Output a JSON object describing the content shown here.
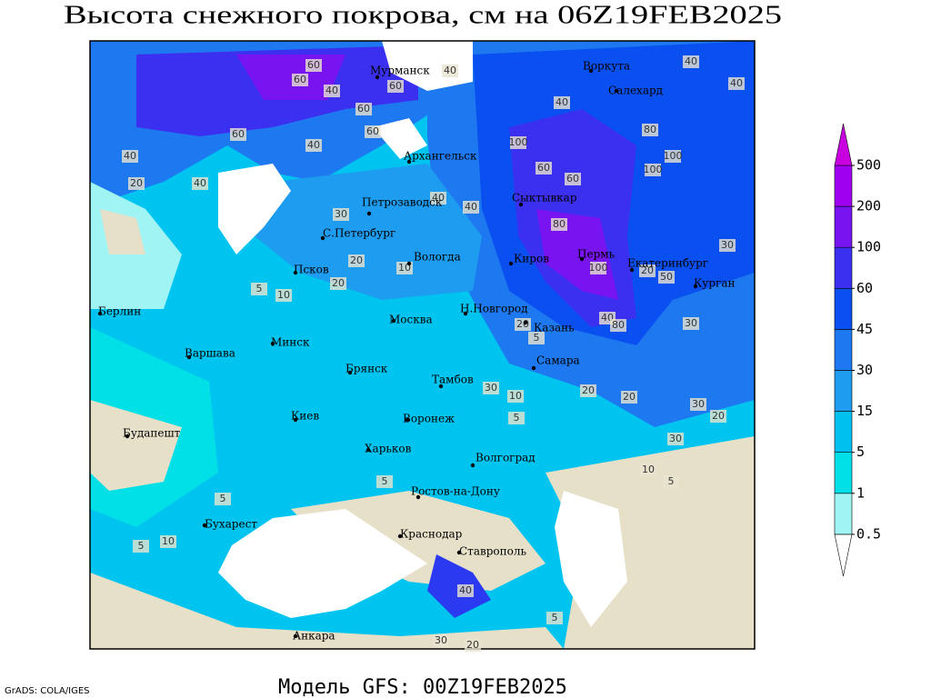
{
  "title": "Высота снежного покрова, см на 06Z19FEB2025",
  "footer": "Модель GFS: 00Z19FEB2025",
  "credit": "GrADS: COLA/IGES",
  "cities": [
    "Мурманск",
    "Воркута",
    "Салехард",
    "Архангельск",
    "Петрозаводск",
    "Сыктывкар",
    "С.Петербург",
    "Вологда",
    "Киров",
    "Пермь",
    "Екатеринбург",
    "Курган",
    "Псков",
    "Н.Новгород",
    "Казань",
    "Берлин",
    "Москва",
    "Минск",
    "Варшава",
    "Самара",
    "Брянск",
    "Тамбов",
    "Киев",
    "Воронеж",
    "Будапешт",
    "Харьков",
    "Волгоград",
    "Ростов-на-Дону",
    "Бухарест",
    "Краснодар",
    "Ставрополь",
    "Анкара"
  ],
  "contour_labels": [
    60,
    60,
    60,
    40,
    40,
    60,
    60,
    40,
    20,
    40,
    40,
    60,
    100,
    60,
    40,
    100,
    60,
    80,
    100,
    40,
    40,
    30,
    40,
    40,
    80,
    100,
    20,
    50,
    40,
    80,
    30,
    20,
    10,
    5,
    20,
    5,
    10,
    30,
    10,
    20,
    20,
    30,
    30,
    20,
    10,
    5,
    5,
    5,
    5,
    10,
    5,
    40,
    30,
    20,
    5,
    30,
    20
  ],
  "legend": {
    "levels": [
      0.5,
      1,
      5,
      15,
      30,
      45,
      60,
      100,
      200,
      500
    ],
    "colors": [
      "#ffffff",
      "#a0f4f4",
      "#00e0e6",
      "#00c0f0",
      "#1e9cf0",
      "#1e78f0",
      "#0a50f0",
      "#3c30f0",
      "#7814f0",
      "#a000f0",
      "#c800e0"
    ]
  }
}
